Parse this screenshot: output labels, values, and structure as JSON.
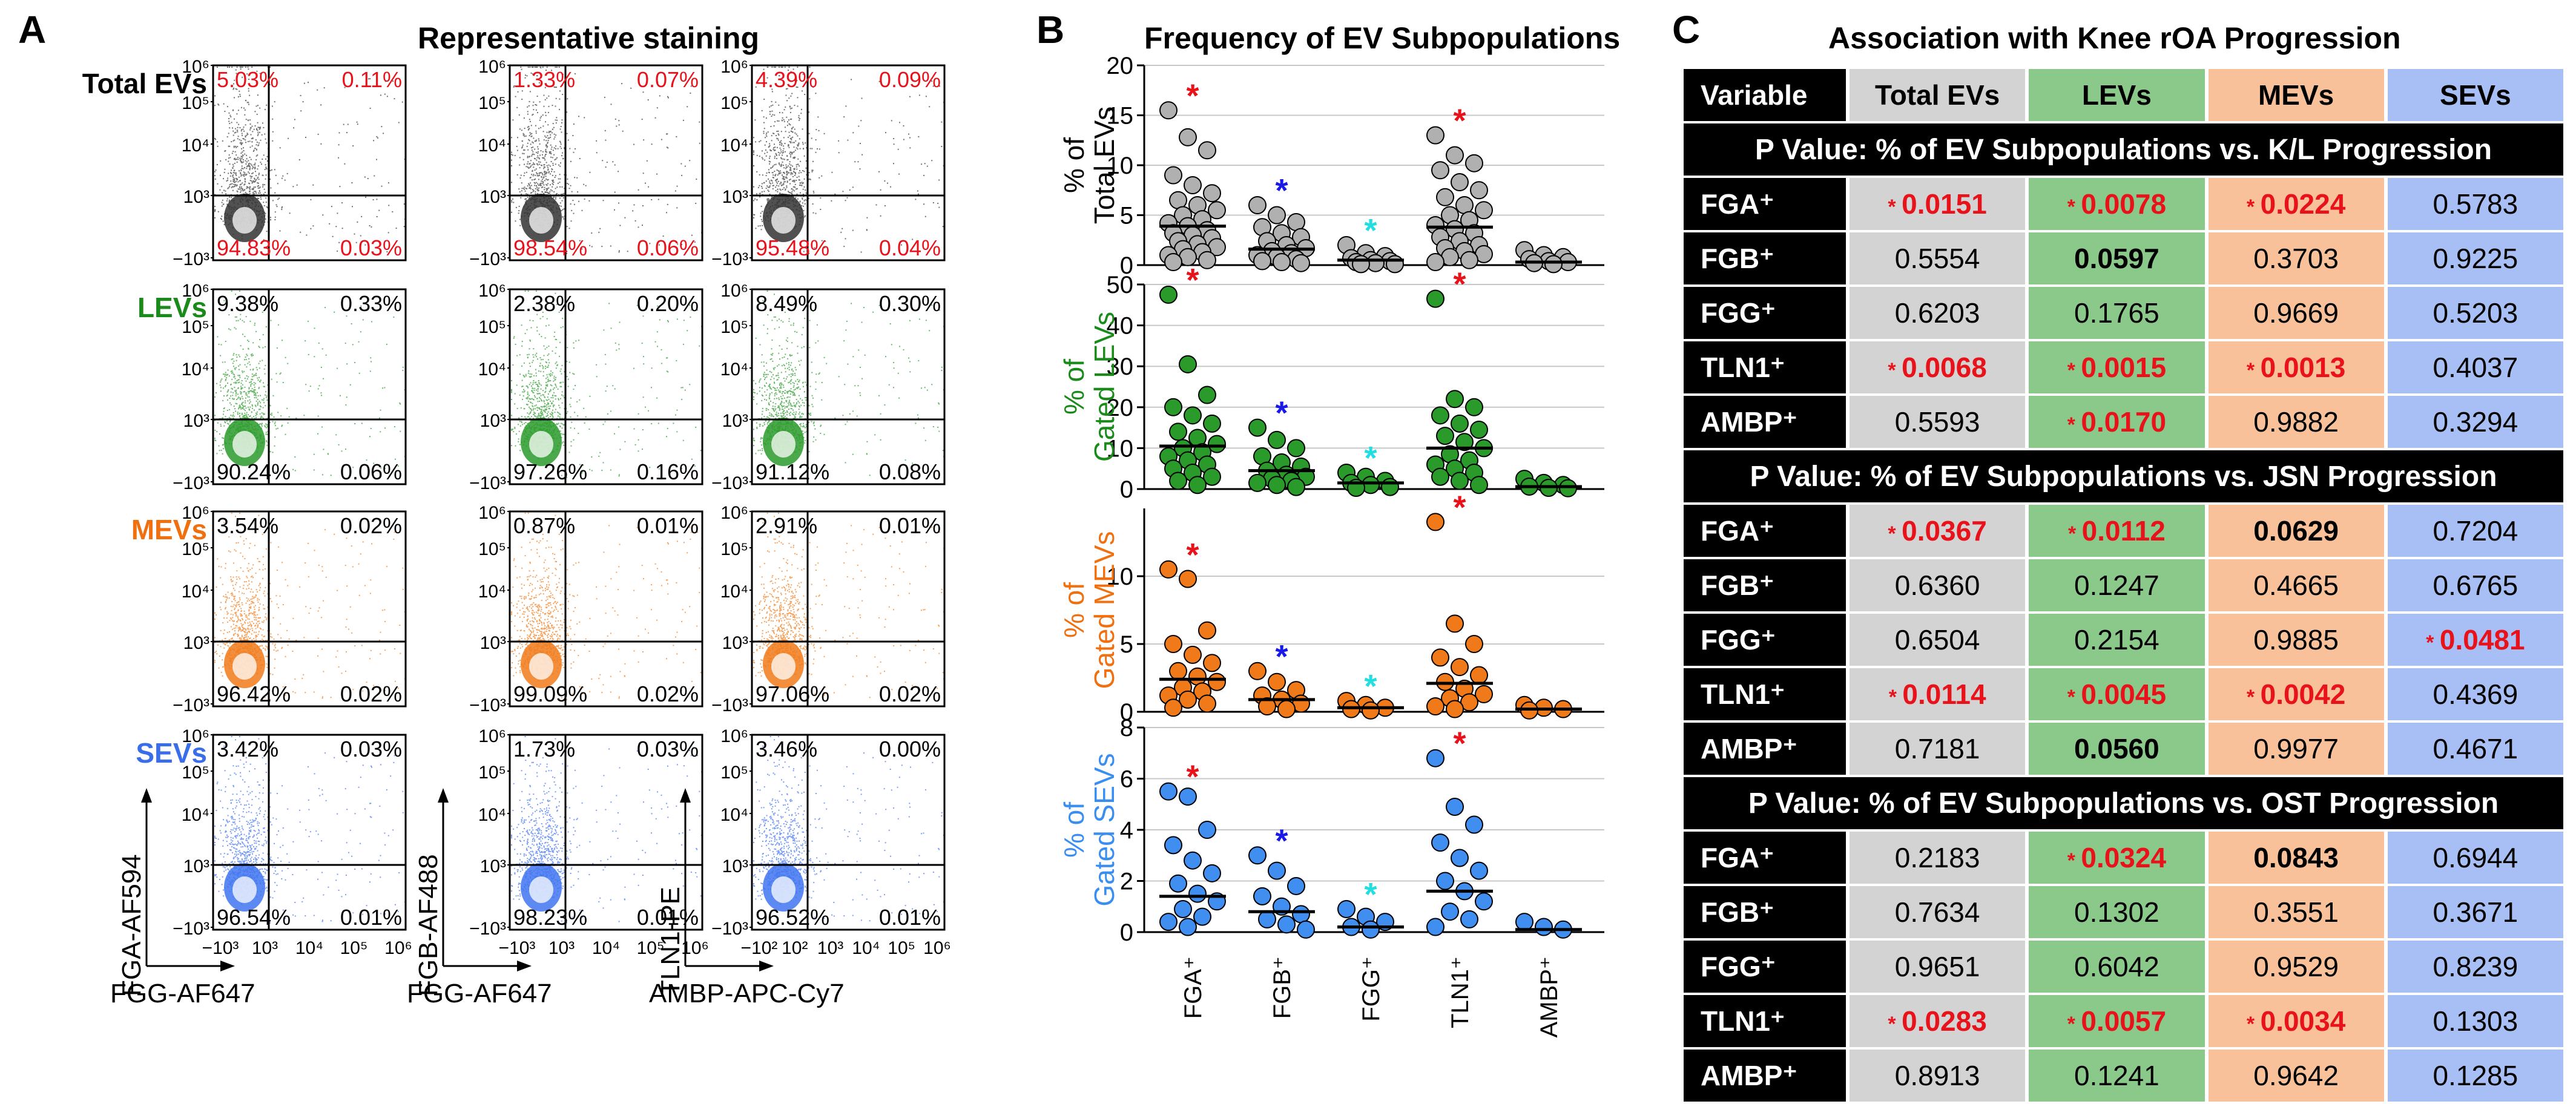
{
  "panels": {
    "a": {
      "letter": "A",
      "title": "Representative staining"
    },
    "b": {
      "letter": "B",
      "title": "Frequency of EV Subpopulations"
    },
    "c": {
      "letter": "C",
      "title": "Association with Knee rOA Progression"
    }
  },
  "flow": {
    "rows": [
      {
        "label": "Total EVs",
        "color": "#000000",
        "dot": "#333333",
        "quads": [
          [
            "5.03%",
            "0.11%",
            "94.83%",
            "0.03%"
          ],
          [
            "1.33%",
            "0.07%",
            "98.54%",
            "0.06%"
          ],
          [
            "4.39%",
            "0.09%",
            "95.48%",
            "0.04%"
          ]
        ],
        "qcolor": "#e8121a"
      },
      {
        "label": "LEVs",
        "color": "#1a8a1a",
        "dot": "#2a9a2a",
        "quads": [
          [
            "9.38%",
            "0.33%",
            "90.24%",
            "0.06%"
          ],
          [
            "2.38%",
            "0.20%",
            "97.26%",
            "0.16%"
          ],
          [
            "8.49%",
            "0.30%",
            "91.12%",
            "0.08%"
          ]
        ],
        "qcolor": "#000000"
      },
      {
        "label": "MEVs",
        "color": "#f07010",
        "dot": "#f07a1a",
        "quads": [
          [
            "3.54%",
            "0.02%",
            "96.42%",
            "0.02%"
          ],
          [
            "0.87%",
            "0.01%",
            "99.09%",
            "0.02%"
          ],
          [
            "2.91%",
            "0.01%",
            "97.06%",
            "0.02%"
          ]
        ],
        "qcolor": "#000000"
      },
      {
        "label": "SEVs",
        "color": "#3a6ee8",
        "dot": "#3f74f0",
        "quads": [
          [
            "3.42%",
            "0.03%",
            "96.54%",
            "0.01%"
          ],
          [
            "1.73%",
            "0.03%",
            "98.23%",
            "0.01%"
          ],
          [
            "3.46%",
            "0.00%",
            "96.52%",
            "0.01%"
          ]
        ],
        "qcolor": "#000000"
      }
    ],
    "y_ticks": [
      "10⁶",
      "10⁵",
      "10⁴",
      "10³",
      "−10³"
    ],
    "x_ticks_1": [
      "−10³",
      "10³",
      "10⁴",
      "10⁵",
      "10⁶"
    ],
    "x_ticks_2": [
      "−10³",
      "10³",
      "10⁴",
      "10⁵",
      "10⁶"
    ],
    "x_ticks_3": [
      "−10²",
      "10²",
      "10³",
      "10⁴",
      "10⁵",
      "10⁶"
    ],
    "y_axis_labels": [
      "FGA-AF594",
      "FGB-AF488",
      "TLN1-PE"
    ],
    "x_axis_labels": [
      "FGG-AF647",
      "FGG-AF647",
      "AMBP-APC-Cy7"
    ]
  },
  "chart_data": {
    "type": "scatter",
    "title": "Frequency of EV Subpopulations",
    "categories": [
      "FGA⁺",
      "FGB⁺",
      "FGG⁺",
      "TLN1⁺",
      "AMBP⁺"
    ],
    "category_colors": [
      "#e8121a",
      "#1a1ae8",
      "#22dede",
      "#e8121a",
      "#000000"
    ],
    "subplots": [
      {
        "ylabel_line1": "% of",
        "ylabel_line2": "Total EVs",
        "label_color": "#000000",
        "fill": "#b0b0b0",
        "ylim": [
          0,
          20
        ],
        "yticks": [
          0,
          5,
          10,
          15,
          20
        ],
        "means": [
          3.9,
          1.6,
          0.5,
          3.8,
          0.3
        ],
        "star": [
          true,
          true,
          true,
          true,
          false
        ],
        "points": [
          [
            15.5,
            12.8,
            11.5,
            9.0,
            8.0,
            7.2,
            6.5,
            6.0,
            5.5,
            5.0,
            4.6,
            4.2,
            3.9,
            3.5,
            3.2,
            3.0,
            2.7,
            2.4,
            2.1,
            1.8,
            1.6,
            1.3,
            1.0,
            0.8,
            0.5,
            0.3
          ],
          [
            6.0,
            5.0,
            4.3,
            3.8,
            3.2,
            2.8,
            2.4,
            2.0,
            1.7,
            1.4,
            1.2,
            1.0,
            0.8,
            0.6,
            0.4,
            0.3,
            0.2
          ],
          [
            2.0,
            1.2,
            0.9,
            0.7,
            0.5,
            0.4,
            0.3,
            0.2,
            0.1,
            0.1
          ],
          [
            13.0,
            11.0,
            10.2,
            9.5,
            8.3,
            7.5,
            6.8,
            6.0,
            5.5,
            5.0,
            4.5,
            4.0,
            3.6,
            3.2,
            2.8,
            2.4,
            2.0,
            1.7,
            1.4,
            1.1,
            0.8,
            0.5,
            0.3
          ],
          [
            1.5,
            1.0,
            0.8,
            0.6,
            0.4,
            0.3,
            0.2,
            0.1
          ]
        ]
      },
      {
        "ylabel_line1": "% of",
        "ylabel_line2": "Gated LEVs",
        "label_color": "#1a8a1a",
        "fill": "#2a9a2a",
        "ylim": [
          0,
          50
        ],
        "yticks": [
          0,
          10,
          20,
          30,
          40,
          50
        ],
        "means": [
          10.5,
          4.5,
          1.5,
          10.0,
          0.6
        ],
        "star": [
          true,
          true,
          true,
          true,
          false
        ],
        "points": [
          [
            47.5,
            30.5,
            23.0,
            20.0,
            18.0,
            16.0,
            14.0,
            12.5,
            11.0,
            10.0,
            9.0,
            8.0,
            7.0,
            6.0,
            5.0,
            4.0,
            3.0,
            2.0,
            1.0
          ],
          [
            15.0,
            12.0,
            10.0,
            8.0,
            6.5,
            5.5,
            4.5,
            3.5,
            3.0,
            2.5,
            2.0,
            1.5,
            1.0,
            0.5
          ],
          [
            4.0,
            3.0,
            2.0,
            1.5,
            1.0,
            0.5,
            0.3
          ],
          [
            46.5,
            22.0,
            20.0,
            18.0,
            16.0,
            14.5,
            13.0,
            11.5,
            10.0,
            8.5,
            7.0,
            6.0,
            5.0,
            4.0,
            3.0,
            2.0,
            1.0
          ],
          [
            2.5,
            1.5,
            1.0,
            0.6,
            0.3,
            0.2
          ]
        ]
      },
      {
        "ylabel_line1": "% of",
        "ylabel_line2": "Gated MEVs",
        "label_color": "#f07010",
        "fill": "#f07a1a",
        "ylim": [
          0,
          15
        ],
        "yticks": [
          0,
          5,
          10
        ],
        "means": [
          2.4,
          0.9,
          0.3,
          2.1,
          0.2
        ],
        "star": [
          true,
          true,
          true,
          true,
          false
        ],
        "points": [
          [
            10.5,
            9.8,
            6.0,
            5.0,
            4.2,
            3.6,
            3.0,
            2.6,
            2.2,
            1.8,
            1.5,
            1.2,
            0.9,
            0.6,
            0.3
          ],
          [
            3.0,
            2.2,
            1.6,
            1.2,
            0.9,
            0.6,
            0.4,
            0.2
          ],
          [
            0.8,
            0.5,
            0.3,
            0.2,
            0.1
          ],
          [
            14.0,
            6.5,
            5.0,
            4.0,
            3.3,
            2.7,
            2.2,
            1.7,
            1.3,
            1.0,
            0.7,
            0.4,
            0.2
          ],
          [
            0.5,
            0.3,
            0.2,
            0.1
          ]
        ]
      },
      {
        "ylabel_line1": "% of",
        "ylabel_line2": "Gated SEVs",
        "label_color": "#3a8ef0",
        "fill": "#3f8ef0",
        "ylim": [
          0,
          8
        ],
        "yticks": [
          0,
          2,
          4,
          6,
          8
        ],
        "means": [
          1.4,
          0.8,
          0.2,
          1.6,
          0.1
        ],
        "star": [
          true,
          true,
          true,
          true,
          false
        ],
        "points": [
          [
            5.5,
            5.3,
            4.0,
            3.4,
            2.8,
            2.3,
            1.9,
            1.5,
            1.2,
            0.9,
            0.6,
            0.4,
            0.2
          ],
          [
            3.0,
            2.4,
            1.8,
            1.4,
            1.0,
            0.7,
            0.5,
            0.3,
            0.1
          ],
          [
            0.9,
            0.6,
            0.4,
            0.2,
            0.1
          ],
          [
            6.8,
            4.9,
            4.2,
            3.5,
            2.9,
            2.4,
            2.0,
            1.6,
            1.2,
            0.8,
            0.5,
            0.2
          ],
          [
            0.4,
            0.2,
            0.1
          ]
        ]
      }
    ]
  },
  "table": {
    "headers": [
      "Variable",
      "Total EVs",
      "LEVs",
      "MEVs",
      "SEVs"
    ],
    "sections": [
      {
        "title": "P Value: % of EV Subpopulations vs. K/L Progression",
        "rows": [
          {
            "var": "FGA⁺",
            "vals": [
              "0.0151",
              "0.0078",
              "0.0224",
              "0.5783"
            ],
            "sig": [
              true,
              true,
              true,
              false
            ],
            "bold": [
              false,
              false,
              false,
              false
            ]
          },
          {
            "var": "FGB⁺",
            "vals": [
              "0.5554",
              "0.0597",
              "0.3703",
              "0.9225"
            ],
            "sig": [
              false,
              false,
              false,
              false
            ],
            "bold": [
              false,
              true,
              false,
              false
            ]
          },
          {
            "var": "FGG⁺",
            "vals": [
              "0.6203",
              "0.1765",
              "0.9669",
              "0.5203"
            ],
            "sig": [
              false,
              false,
              false,
              false
            ],
            "bold": [
              false,
              false,
              false,
              false
            ]
          },
          {
            "var": "TLN1⁺",
            "vals": [
              "0.0068",
              "0.0015",
              "0.0013",
              "0.4037"
            ],
            "sig": [
              true,
              true,
              true,
              false
            ],
            "bold": [
              false,
              false,
              false,
              false
            ]
          },
          {
            "var": "AMBP⁺",
            "vals": [
              "0.5593",
              "0.0170",
              "0.9882",
              "0.3294"
            ],
            "sig": [
              false,
              true,
              false,
              false
            ],
            "bold": [
              false,
              false,
              false,
              false
            ]
          }
        ]
      },
      {
        "title": "P Value: % of EV Subpopulations vs. JSN Progression",
        "rows": [
          {
            "var": "FGA⁺",
            "vals": [
              "0.0367",
              "0.0112",
              "0.0629",
              "0.7204"
            ],
            "sig": [
              true,
              true,
              false,
              false
            ],
            "bold": [
              false,
              false,
              true,
              false
            ]
          },
          {
            "var": "FGB⁺",
            "vals": [
              "0.6360",
              "0.1247",
              "0.4665",
              "0.6765"
            ],
            "sig": [
              false,
              false,
              false,
              false
            ],
            "bold": [
              false,
              false,
              false,
              false
            ]
          },
          {
            "var": "FGG⁺",
            "vals": [
              "0.6504",
              "0.2154",
              "0.9885",
              "0.0481"
            ],
            "sig": [
              false,
              false,
              false,
              true
            ],
            "bold": [
              false,
              false,
              false,
              false
            ]
          },
          {
            "var": "TLN1⁺",
            "vals": [
              "0.0114",
              "0.0045",
              "0.0042",
              "0.4369"
            ],
            "sig": [
              true,
              true,
              true,
              false
            ],
            "bold": [
              false,
              false,
              false,
              false
            ]
          },
          {
            "var": "AMBP⁺",
            "vals": [
              "0.7181",
              "0.0560",
              "0.9977",
              "0.4671"
            ],
            "sig": [
              false,
              false,
              false,
              false
            ],
            "bold": [
              false,
              true,
              false,
              false
            ]
          }
        ]
      },
      {
        "title": "P Value: % of EV Subpopulations vs. OST Progression",
        "rows": [
          {
            "var": "FGA⁺",
            "vals": [
              "0.2183",
              "0.0324",
              "0.0843",
              "0.6944"
            ],
            "sig": [
              false,
              true,
              false,
              false
            ],
            "bold": [
              false,
              false,
              true,
              false
            ]
          },
          {
            "var": "FGB⁺",
            "vals": [
              "0.7634",
              "0.1302",
              "0.3551",
              "0.3671"
            ],
            "sig": [
              false,
              false,
              false,
              false
            ],
            "bold": [
              false,
              false,
              false,
              false
            ]
          },
          {
            "var": "FGG⁺",
            "vals": [
              "0.9651",
              "0.6042",
              "0.9529",
              "0.8239"
            ],
            "sig": [
              false,
              false,
              false,
              false
            ],
            "bold": [
              false,
              false,
              false,
              false
            ]
          },
          {
            "var": "TLN1⁺",
            "vals": [
              "0.0283",
              "0.0057",
              "0.0034",
              "0.1303"
            ],
            "sig": [
              true,
              true,
              true,
              false
            ],
            "bold": [
              false,
              false,
              false,
              false
            ]
          },
          {
            "var": "AMBP⁺",
            "vals": [
              "0.8913",
              "0.1241",
              "0.9642",
              "0.1285"
            ],
            "sig": [
              false,
              false,
              false,
              false
            ],
            "bold": [
              false,
              false,
              false,
              false
            ]
          }
        ]
      }
    ]
  }
}
